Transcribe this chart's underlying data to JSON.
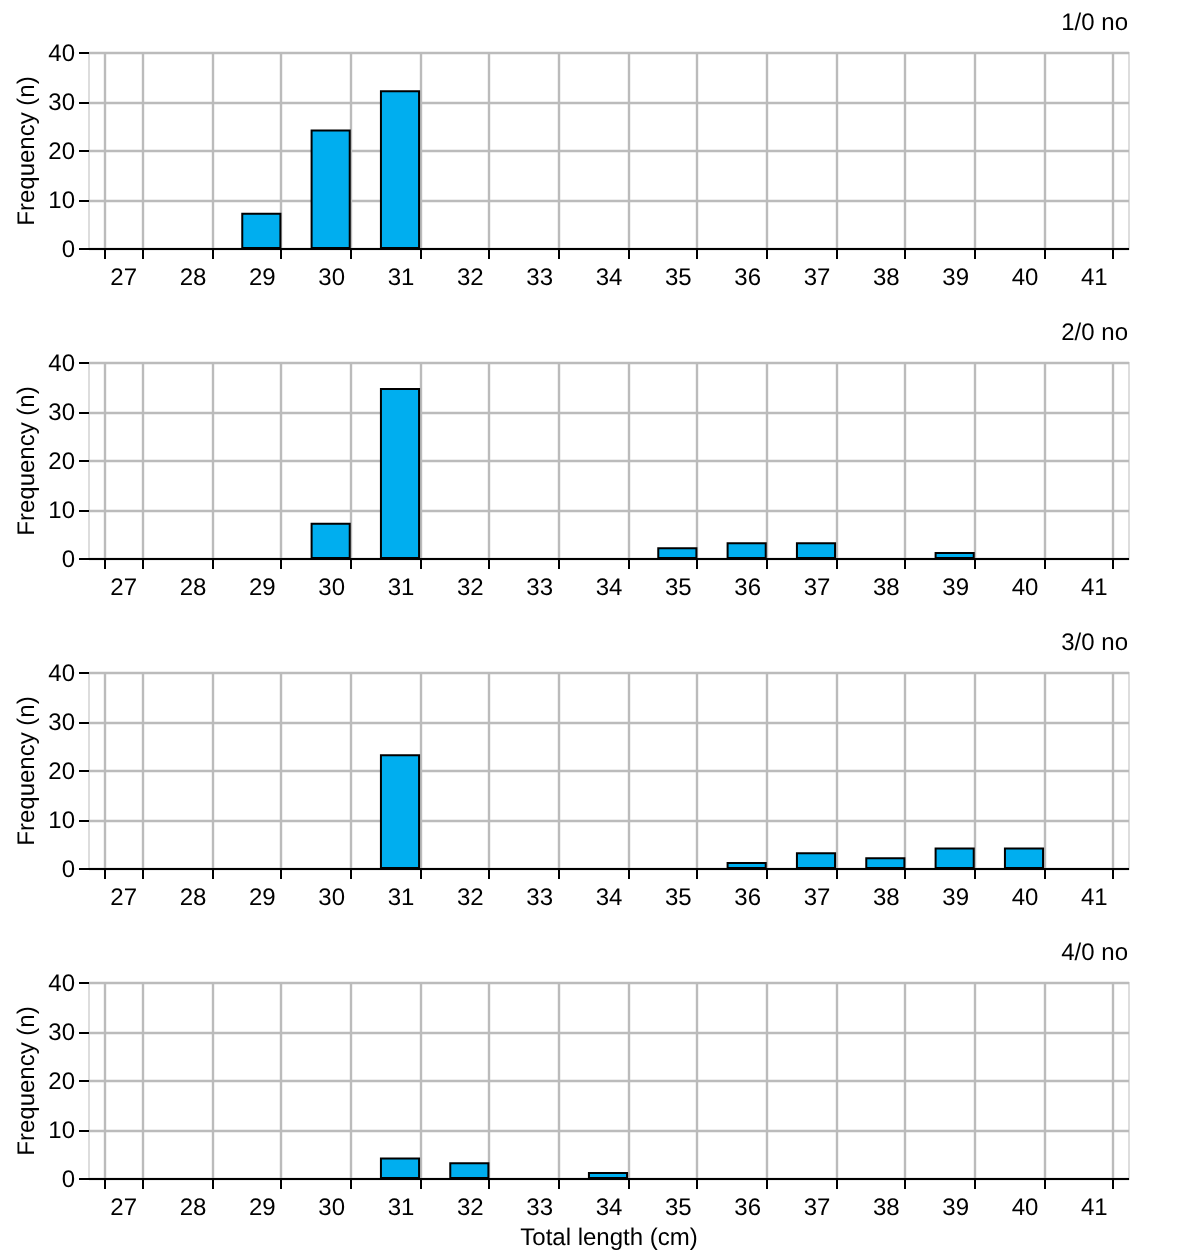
{
  "chart_data": [
    {
      "type": "bar",
      "title": "1/0 no",
      "ylabel": "Frequency (n)",
      "categories": [
        "27",
        "28",
        "29",
        "30",
        "31",
        "32",
        "33",
        "34",
        "35",
        "36",
        "37",
        "38",
        "39",
        "40",
        "41"
      ],
      "series": [
        {
          "color": "#00aeef",
          "values": [
            null,
            null,
            7,
            24,
            32,
            null,
            null,
            null,
            null,
            null,
            null,
            null,
            null,
            null,
            null
          ]
        }
      ],
      "ylim": [
        0,
        40
      ],
      "yticks": [
        0,
        10,
        20,
        30,
        40
      ],
      "grid": true,
      "legend": false
    },
    {
      "type": "bar",
      "title": "2/0 no",
      "ylabel": "Frequency (n)",
      "categories": [
        "27",
        "28",
        "29",
        "30",
        "31",
        "32",
        "33",
        "34",
        "35",
        "36",
        "37",
        "38",
        "39",
        "40",
        "41"
      ],
      "series": [
        {
          "color": "#00aeef",
          "values": [
            null,
            null,
            null,
            7,
            34.5,
            null,
            null,
            null,
            2,
            3,
            3,
            null,
            1,
            null,
            null
          ]
        }
      ],
      "ylim": [
        0,
        40
      ],
      "yticks": [
        0,
        10,
        20,
        30,
        40
      ],
      "grid": true,
      "legend": false
    },
    {
      "type": "bar",
      "title": "3/0 no",
      "ylabel": "Frequency (n)",
      "categories": [
        "27",
        "28",
        "29",
        "30",
        "31",
        "32",
        "33",
        "34",
        "35",
        "36",
        "37",
        "38",
        "39",
        "40",
        "41"
      ],
      "series": [
        {
          "color": "#00aeef",
          "values": [
            null,
            null,
            null,
            null,
            23,
            null,
            null,
            null,
            null,
            1,
            3,
            2,
            4,
            4,
            null
          ]
        }
      ],
      "ylim": [
        0,
        40
      ],
      "yticks": [
        0,
        10,
        20,
        30,
        40
      ],
      "grid": true,
      "legend": false
    },
    {
      "type": "bar",
      "title": "4/0 no",
      "ylabel": "Frequency (n)",
      "xlabel": "Total length (cm)",
      "categories": [
        "27",
        "28",
        "29",
        "30",
        "31",
        "32",
        "33",
        "34",
        "35",
        "36",
        "37",
        "38",
        "39",
        "40",
        "41"
      ],
      "series": [
        {
          "color": "#00aeef",
          "values": [
            null,
            null,
            null,
            null,
            4,
            3,
            null,
            1,
            null,
            null,
            null,
            null,
            null,
            null,
            null
          ]
        }
      ],
      "ylim": [
        0,
        40
      ],
      "yticks": [
        0,
        10,
        20,
        30,
        40
      ],
      "grid": true,
      "legend": false
    }
  ]
}
